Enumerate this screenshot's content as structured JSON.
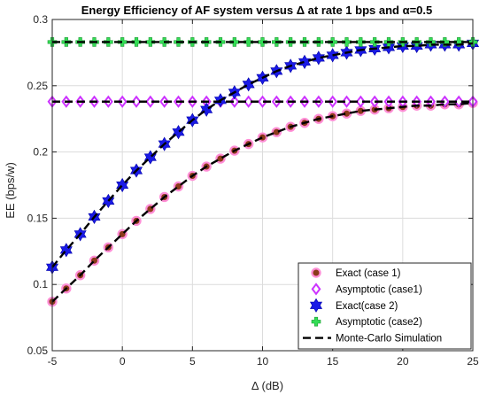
{
  "chart_data": {
    "type": "line",
    "title": "Energy Efficiency of AF system versus Δ at rate 1 bps and α=0.5",
    "xlabel": "Δ (dB)",
    "ylabel": "EE (bps/w)",
    "xlim": [
      -5,
      25
    ],
    "ylim": [
      0.05,
      0.3
    ],
    "xticks": [
      -5,
      0,
      5,
      10,
      15,
      20,
      25
    ],
    "yticks": [
      0.05,
      0.1,
      0.15,
      0.2,
      0.25,
      0.3
    ],
    "xtick_labels": [
      "-5",
      "0",
      "5",
      "10",
      "15",
      "20",
      "25"
    ],
    "ytick_labels": [
      "0.05",
      "0.1",
      "0.15",
      "0.2",
      "0.25",
      "0.3"
    ],
    "grid": true,
    "legend_position": "bottom-right",
    "x": [
      -5,
      -4,
      -3,
      -2,
      -1,
      0,
      1,
      2,
      3,
      4,
      5,
      6,
      7,
      8,
      9,
      10,
      11,
      12,
      13,
      14,
      15,
      16,
      17,
      18,
      19,
      20,
      21,
      22,
      23,
      24,
      25
    ],
    "series": [
      {
        "name": "Exact (case 1)",
        "marker": "circle",
        "color": "#8b3a1a",
        "edge_color": "#ff8ed6",
        "values": [
          0.087,
          0.097,
          0.107,
          0.118,
          0.128,
          0.138,
          0.148,
          0.157,
          0.166,
          0.174,
          0.182,
          0.189,
          0.195,
          0.201,
          0.206,
          0.211,
          0.215,
          0.219,
          0.222,
          0.225,
          0.227,
          0.229,
          0.231,
          0.232,
          0.233,
          0.234,
          0.235,
          0.235,
          0.236,
          0.236,
          0.237
        ]
      },
      {
        "name": "Asymptotic (case1)",
        "marker": "diamond",
        "color": "#cc33ff",
        "values": [
          0.238,
          0.238,
          0.238,
          0.238,
          0.238,
          0.238,
          0.238,
          0.238,
          0.238,
          0.238,
          0.238,
          0.238,
          0.238,
          0.238,
          0.238,
          0.238,
          0.238,
          0.238,
          0.238,
          0.238,
          0.238,
          0.238,
          0.238,
          0.238,
          0.238,
          0.238,
          0.238,
          0.238,
          0.238,
          0.238,
          0.238
        ]
      },
      {
        "name": "Exact(case 2)",
        "marker": "hexagram",
        "color": "#1a1ae6",
        "values": [
          0.113,
          0.126,
          0.138,
          0.151,
          0.163,
          0.175,
          0.186,
          0.196,
          0.206,
          0.215,
          0.224,
          0.232,
          0.239,
          0.245,
          0.251,
          0.256,
          0.261,
          0.265,
          0.268,
          0.271,
          0.273,
          0.275,
          0.277,
          0.278,
          0.279,
          0.28,
          0.28,
          0.281,
          0.281,
          0.281,
          0.282
        ]
      },
      {
        "name": "Asymptotic (case2)",
        "marker": "plus",
        "color": "#33dd55",
        "values": [
          0.283,
          0.283,
          0.283,
          0.283,
          0.283,
          0.283,
          0.283,
          0.283,
          0.283,
          0.283,
          0.283,
          0.283,
          0.283,
          0.283,
          0.283,
          0.283,
          0.283,
          0.283,
          0.283,
          0.283,
          0.283,
          0.283,
          0.283,
          0.283,
          0.283,
          0.283,
          0.283,
          0.283,
          0.283,
          0.283,
          0.283
        ]
      },
      {
        "name": "Monte-Carlo Simulation",
        "marker": "none",
        "line": "dashed",
        "color": "#000000",
        "overlays": [
          "Exact (case 1)",
          "Asymptotic (case1)",
          "Exact(case 2)",
          "Asymptotic (case2)"
        ]
      }
    ]
  }
}
